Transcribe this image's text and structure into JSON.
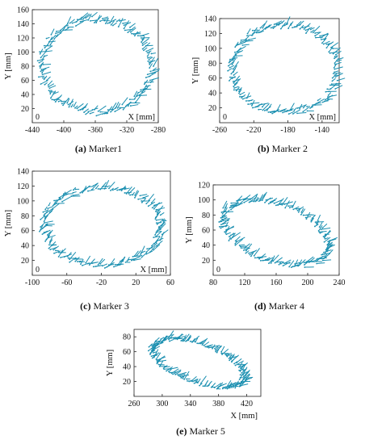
{
  "chart_data": [
    {
      "type": "vector-field",
      "caption_tag": "(a)",
      "caption_text": " Marker1",
      "xlabel": "X [mm]",
      "ylabel": "Y [mm]",
      "corner_label": "0",
      "xlim": [
        -440,
        -280
      ],
      "ylim": [
        0,
        160
      ],
      "xticks": [
        -440,
        -400,
        -360,
        -320,
        -280
      ],
      "yticks": [
        20,
        40,
        60,
        80,
        100,
        120,
        140,
        160
      ],
      "ellipse": {
        "cx": -360,
        "cy": 80,
        "rx": 70,
        "ry": 66
      },
      "arrow": [
        5,
        -3
      ]
    },
    {
      "type": "vector-field",
      "caption_tag": "(b)",
      "caption_text": " Marker 2",
      "xlabel": "X [mm]",
      "ylabel": "Y [mm]",
      "corner_label": "0",
      "xlim": [
        -260,
        -120
      ],
      "ylim": [
        0,
        140
      ],
      "xticks": [
        -260,
        -220,
        -180,
        -140
      ],
      "yticks": [
        20,
        40,
        60,
        80,
        100,
        120,
        140
      ],
      "ellipse": {
        "cx": -185,
        "cy": 72,
        "rx": 63,
        "ry": 58
      },
      "arrow": [
        5,
        -3
      ]
    },
    {
      "type": "vector-field",
      "caption_tag": "(c)",
      "caption_text": " Marker 3",
      "xlabel": "X [mm]",
      "ylabel": "Y [mm]",
      "corner_label": "0",
      "xlim": [
        -100,
        60
      ],
      "ylim": [
        0,
        140
      ],
      "xticks": [
        -100,
        -60,
        -20,
        20,
        60
      ],
      "yticks": [
        20,
        40,
        60,
        80,
        100,
        120,
        140
      ],
      "ellipse": {
        "cx": -20,
        "cy": 65,
        "rx": 68,
        "ry": 52
      },
      "arrow": [
        5,
        -3
      ]
    },
    {
      "type": "vector-field",
      "caption_tag": "(d)",
      "caption_text": " Marker 4",
      "xlabel": "",
      "ylabel": "Y [mm]",
      "corner_label": "0",
      "xlim": [
        80,
        240
      ],
      "ylim": [
        0,
        120
      ],
      "xticks": [
        80,
        120,
        160,
        200,
        240
      ],
      "yticks": [
        20,
        40,
        60,
        80,
        100,
        120
      ],
      "ellipse": {
        "cx": 158,
        "cy": 56,
        "rx": 70,
        "ry": 38,
        "tilt": -20
      },
      "arrow": [
        5,
        -3
      ]
    },
    {
      "type": "vector-field",
      "caption_tag": "(e)",
      "caption_text": " Marker 5",
      "xlabel": "X [mm]",
      "ylabel": "Y [mm]",
      "corner_label": "",
      "xlim": [
        260,
        440
      ],
      "ylim": [
        0,
        90
      ],
      "xticks": [
        260,
        300,
        340,
        380,
        420
      ],
      "yticks": [
        20,
        40,
        60,
        80
      ],
      "ellipse": {
        "cx": 350,
        "cy": 44,
        "rx": 68,
        "ry": 26,
        "tilt": -18
      },
      "arrow": [
        5,
        -3
      ]
    }
  ]
}
